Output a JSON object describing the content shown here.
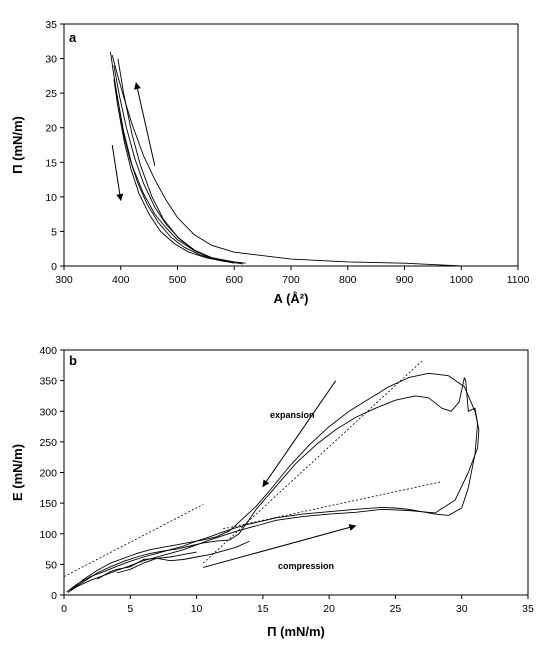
{
  "chart_data": [
    {
      "type": "line",
      "panel_label": "a",
      "xlabel": "A (Å²)",
      "ylabel": "Π (mN/m)",
      "xlim": [
        300,
        1100
      ],
      "ylim": [
        0,
        35
      ],
      "xticks": [
        "300",
        "400",
        "500",
        "600",
        "700",
        "800",
        "900",
        "1000",
        "1100"
      ],
      "yticks": [
        "0",
        "5",
        "10",
        "15",
        "20",
        "25",
        "30",
        "35"
      ],
      "grid": false,
      "series": [
        {
          "x": [
            1000,
            950,
            900,
            800,
            700,
            600,
            560,
            530,
            500,
            480,
            460,
            440,
            420,
            405,
            393,
            385
          ],
          "y": [
            0,
            0.2,
            0.4,
            0.6,
            1.0,
            2.0,
            3.0,
            4.5,
            7.0,
            9.5,
            12.5,
            16.0,
            20.5,
            24.5,
            28.0,
            30.5
          ]
        },
        {
          "x": [
            382,
            387,
            395,
            405,
            420,
            440,
            460,
            480,
            500,
            530,
            560,
            600,
            620
          ],
          "y": [
            31.0,
            28.0,
            24.0,
            19.5,
            14.5,
            10.5,
            7.5,
            5.5,
            3.8,
            2.2,
            1.2,
            0.6,
            0.4
          ]
        },
        {
          "x": [
            610,
            580,
            550,
            520,
            495,
            470,
            450,
            432,
            418,
            406,
            395,
            388
          ],
          "y": [
            0.4,
            0.7,
            1.2,
            2.0,
            3.2,
            5.0,
            7.5,
            10.5,
            14.0,
            18.0,
            23.0,
            27.0
          ]
        },
        {
          "x": [
            395,
            405,
            420,
            435,
            455,
            475,
            500,
            530,
            560,
            600,
            615
          ],
          "y": [
            30.0,
            25.0,
            19.0,
            14.5,
            10.0,
            6.8,
            4.2,
            2.3,
            1.2,
            0.5,
            0.3
          ]
        },
        {
          "x": [
            600,
            570,
            540,
            512,
            488,
            466,
            446,
            430,
            416,
            405,
            396,
            390
          ],
          "y": [
            0.5,
            0.9,
            1.6,
            2.7,
            4.2,
            6.3,
            9.0,
            12.0,
            15.5,
            19.0,
            23.5,
            26.0
          ]
        },
        {
          "x": [
            388,
            398,
            410,
            425,
            440,
            460,
            480,
            505,
            535,
            565,
            600
          ],
          "y": [
            29.0,
            24.5,
            20.0,
            15.5,
            12.0,
            8.5,
            6.0,
            3.8,
            2.0,
            1.0,
            0.4
          ]
        }
      ],
      "arrows": [
        {
          "from": [
            460,
            14.5
          ],
          "to": [
            427,
            26.5
          ]
        },
        {
          "from": [
            385,
            17.5
          ],
          "to": [
            400,
            9.5
          ]
        }
      ]
    },
    {
      "type": "line",
      "panel_label": "b",
      "xlabel": "Π (mN/m)",
      "ylabel": "E (mN/m)",
      "xlim": [
        0,
        35
      ],
      "ylim": [
        0,
        400
      ],
      "xticks": [
        "0",
        "5",
        "10",
        "15",
        "20",
        "25",
        "30",
        "35"
      ],
      "yticks": [
        "0",
        "50",
        "100",
        "150",
        "200",
        "250",
        "300",
        "350",
        "400"
      ],
      "grid": false,
      "annotations": [
        "expansion",
        "compression"
      ],
      "series": [
        {
          "x": [
            0.2,
            1,
            2,
            3,
            4,
            5,
            6,
            7,
            8,
            9,
            10,
            11,
            12,
            13,
            14,
            15,
            16,
            18,
            20,
            22,
            24,
            25,
            26,
            27,
            28,
            29,
            30,
            30.5,
            31,
            31.2,
            31.0,
            30.5,
            30.3,
            30.2
          ],
          "y": [
            5,
            18,
            30,
            38,
            47,
            55,
            62,
            68,
            74,
            80,
            88,
            95,
            103,
            110,
            116,
            121,
            126,
            132,
            136,
            140,
            143,
            142,
            140,
            136,
            132,
            130,
            142,
            175,
            230,
            280,
            305,
            300,
            350,
            355
          ]
        },
        {
          "x": [
            30.2,
            29.8,
            29.2,
            28.5,
            27.5,
            26.5,
            25,
            23.5,
            22,
            20.5,
            19,
            17.5,
            16.5,
            15.5,
            14.5,
            13.8,
            13.2,
            12.5,
            11.5,
            10.5,
            9.5,
            8.5,
            7.5,
            6.5,
            5.5,
            4.5,
            3.5,
            2.5,
            1.5,
            0.5
          ],
          "y": [
            355,
            315,
            300,
            305,
            322,
            325,
            318,
            305,
            290,
            270,
            245,
            215,
            190,
            165,
            140,
            118,
            100,
            90,
            88,
            85,
            80,
            75,
            72,
            68,
            62,
            55,
            46,
            36,
            22,
            8
          ]
        },
        {
          "x": [
            0.3,
            1,
            2,
            3,
            4,
            5,
            6,
            7,
            8,
            9,
            10,
            11,
            12,
            13,
            14,
            15,
            16,
            18,
            20,
            22,
            24,
            26,
            28,
            29.5,
            30.5,
            31.2,
            31.3,
            31.0
          ],
          "y": [
            4,
            14,
            24,
            32,
            40,
            48,
            56,
            62,
            68,
            74,
            82,
            90,
            97,
            104,
            110,
            116,
            122,
            128,
            132,
            135,
            140,
            138,
            134,
            155,
            200,
            240,
            270,
            300
          ]
        },
        {
          "x": [
            31.0,
            30.2,
            29,
            27.5,
            26,
            24.5,
            23,
            21.5,
            20,
            18.5,
            17,
            15.5,
            14.5,
            13.5,
            12.5,
            11.5,
            10.5,
            9.5,
            8.5,
            7.5,
            6.5,
            5.5,
            4.5,
            3.5,
            2.5,
            1.5,
            0.5
          ],
          "y": [
            300,
            340,
            358,
            362,
            355,
            340,
            320,
            300,
            275,
            245,
            210,
            170,
            145,
            125,
            105,
            95,
            90,
            86,
            82,
            78,
            74,
            68,
            60,
            52,
            40,
            26,
            8
          ]
        },
        {
          "x": [
            2.5,
            3,
            3.5,
            4,
            5,
            5.5,
            6,
            7,
            8,
            8.5,
            9,
            10
          ],
          "y": [
            26,
            32,
            38,
            42,
            46,
            52,
            58,
            60,
            62,
            64,
            66,
            70
          ]
        },
        {
          "x": [
            4,
            5,
            6,
            7,
            8,
            9,
            10,
            11,
            12,
            13,
            14
          ],
          "y": [
            36,
            42,
            52,
            60,
            56,
            58,
            62,
            66,
            72,
            78,
            88
          ]
        }
      ],
      "fit_lines": [
        {
          "x": [
            0,
            10.5
          ],
          "y": [
            30,
            148
          ]
        },
        {
          "x": [
            10.5,
            27
          ],
          "y": [
            52,
            382
          ]
        },
        {
          "x": [
            12,
            28.5
          ],
          "y": [
            108,
            185
          ]
        }
      ],
      "arrows": [
        {
          "from": [
            20.5,
            350
          ],
          "to": [
            15,
            177
          ]
        },
        {
          "from": [
            10.5,
            45
          ],
          "to": [
            22,
            113
          ]
        }
      ]
    }
  ]
}
